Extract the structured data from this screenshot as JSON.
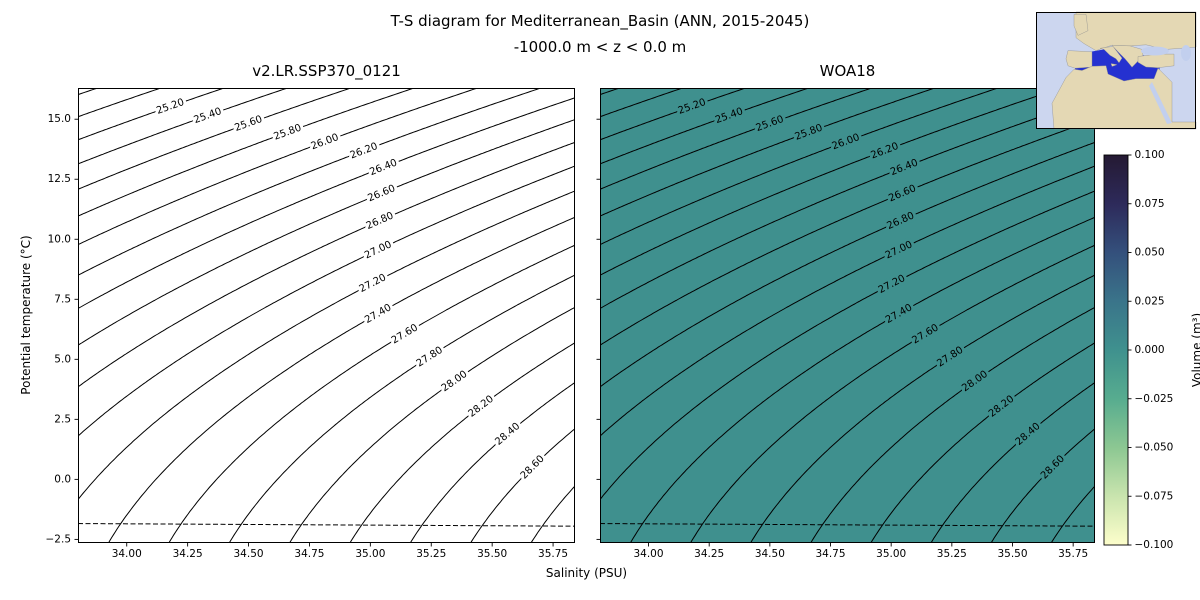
{
  "figure": {
    "title": "T-S diagram for Mediterranean_Basin (ANN, 2015-2045)",
    "subtitle": "-1000.0 m < z < 0.0 m"
  },
  "map": {
    "ocean": "#ccd6ef",
    "land": "#e4d8b4",
    "highlight": "#2531d0",
    "lake": "#c2cfee",
    "border": "#000000"
  },
  "chart_data": {
    "type": "contour",
    "panels": [
      {
        "title": "v2.LR.SSP370_0121",
        "background": "#ffffff",
        "show_y_tick_labels": true
      },
      {
        "title": "WOA18",
        "background": "#3f908e",
        "show_y_tick_labels": false
      }
    ],
    "x": {
      "label": "Salinity (PSU)",
      "min": 33.8,
      "max": 35.84,
      "ticks": [
        34.0,
        34.25,
        34.5,
        34.75,
        35.0,
        35.25,
        35.5,
        35.75
      ],
      "tick_labels": [
        "34.00",
        "34.25",
        "34.50",
        "34.75",
        "35.00",
        "35.25",
        "35.50",
        "35.75"
      ]
    },
    "y": {
      "label": "Potential temperature (°C)",
      "min": -2.65,
      "max": 16.3,
      "ticks": [
        -2.5,
        0.0,
        2.5,
        5.0,
        7.5,
        10.0,
        12.5,
        15.0
      ],
      "tick_labels": [
        "−2.5",
        "0.0",
        "2.5",
        "5.0",
        "7.5",
        "10.0",
        "12.5",
        "15.0"
      ]
    },
    "sigma_levels": [
      24.8,
      25.0,
      25.2,
      25.4,
      25.6,
      25.8,
      26.0,
      26.2,
      26.4,
      26.6,
      26.8,
      27.0,
      27.2,
      27.4,
      27.6,
      27.8,
      28.0,
      28.2,
      28.4,
      28.6,
      28.8
    ],
    "contour_label_values": [
      "25.20",
      "25.40",
      "25.60",
      "25.80",
      "26.00",
      "26.20",
      "26.40",
      "26.60",
      "26.80",
      "27.00",
      "27.20",
      "27.40",
      "27.60",
      "27.80",
      "28.00",
      "28.20",
      "28.40",
      "28.60"
    ],
    "label_min_length": 120,
    "label_fraction": 0.62,
    "freezing_line": {
      "style": "dashed",
      "t_at_smin": -1.84,
      "t_at_smax": -1.95
    },
    "colorbar": {
      "label": "Volume (m³)",
      "min": -0.1,
      "max": 0.1,
      "ticks": [
        0.1,
        0.075,
        0.05,
        0.025,
        0.0,
        -0.025,
        -0.05,
        -0.075,
        -0.1
      ],
      "tick_labels": [
        "0.100",
        "0.075",
        "0.050",
        "0.025",
        "0.000",
        "−0.025",
        "−0.050",
        "−0.075",
        "−0.100"
      ],
      "colors": [
        "#251a33",
        "#2d2a5a",
        "#34507c",
        "#3a748a",
        "#3f918e",
        "#57ac8f",
        "#8cc792",
        "#c9e4ae",
        "#fdfecb"
      ]
    }
  }
}
